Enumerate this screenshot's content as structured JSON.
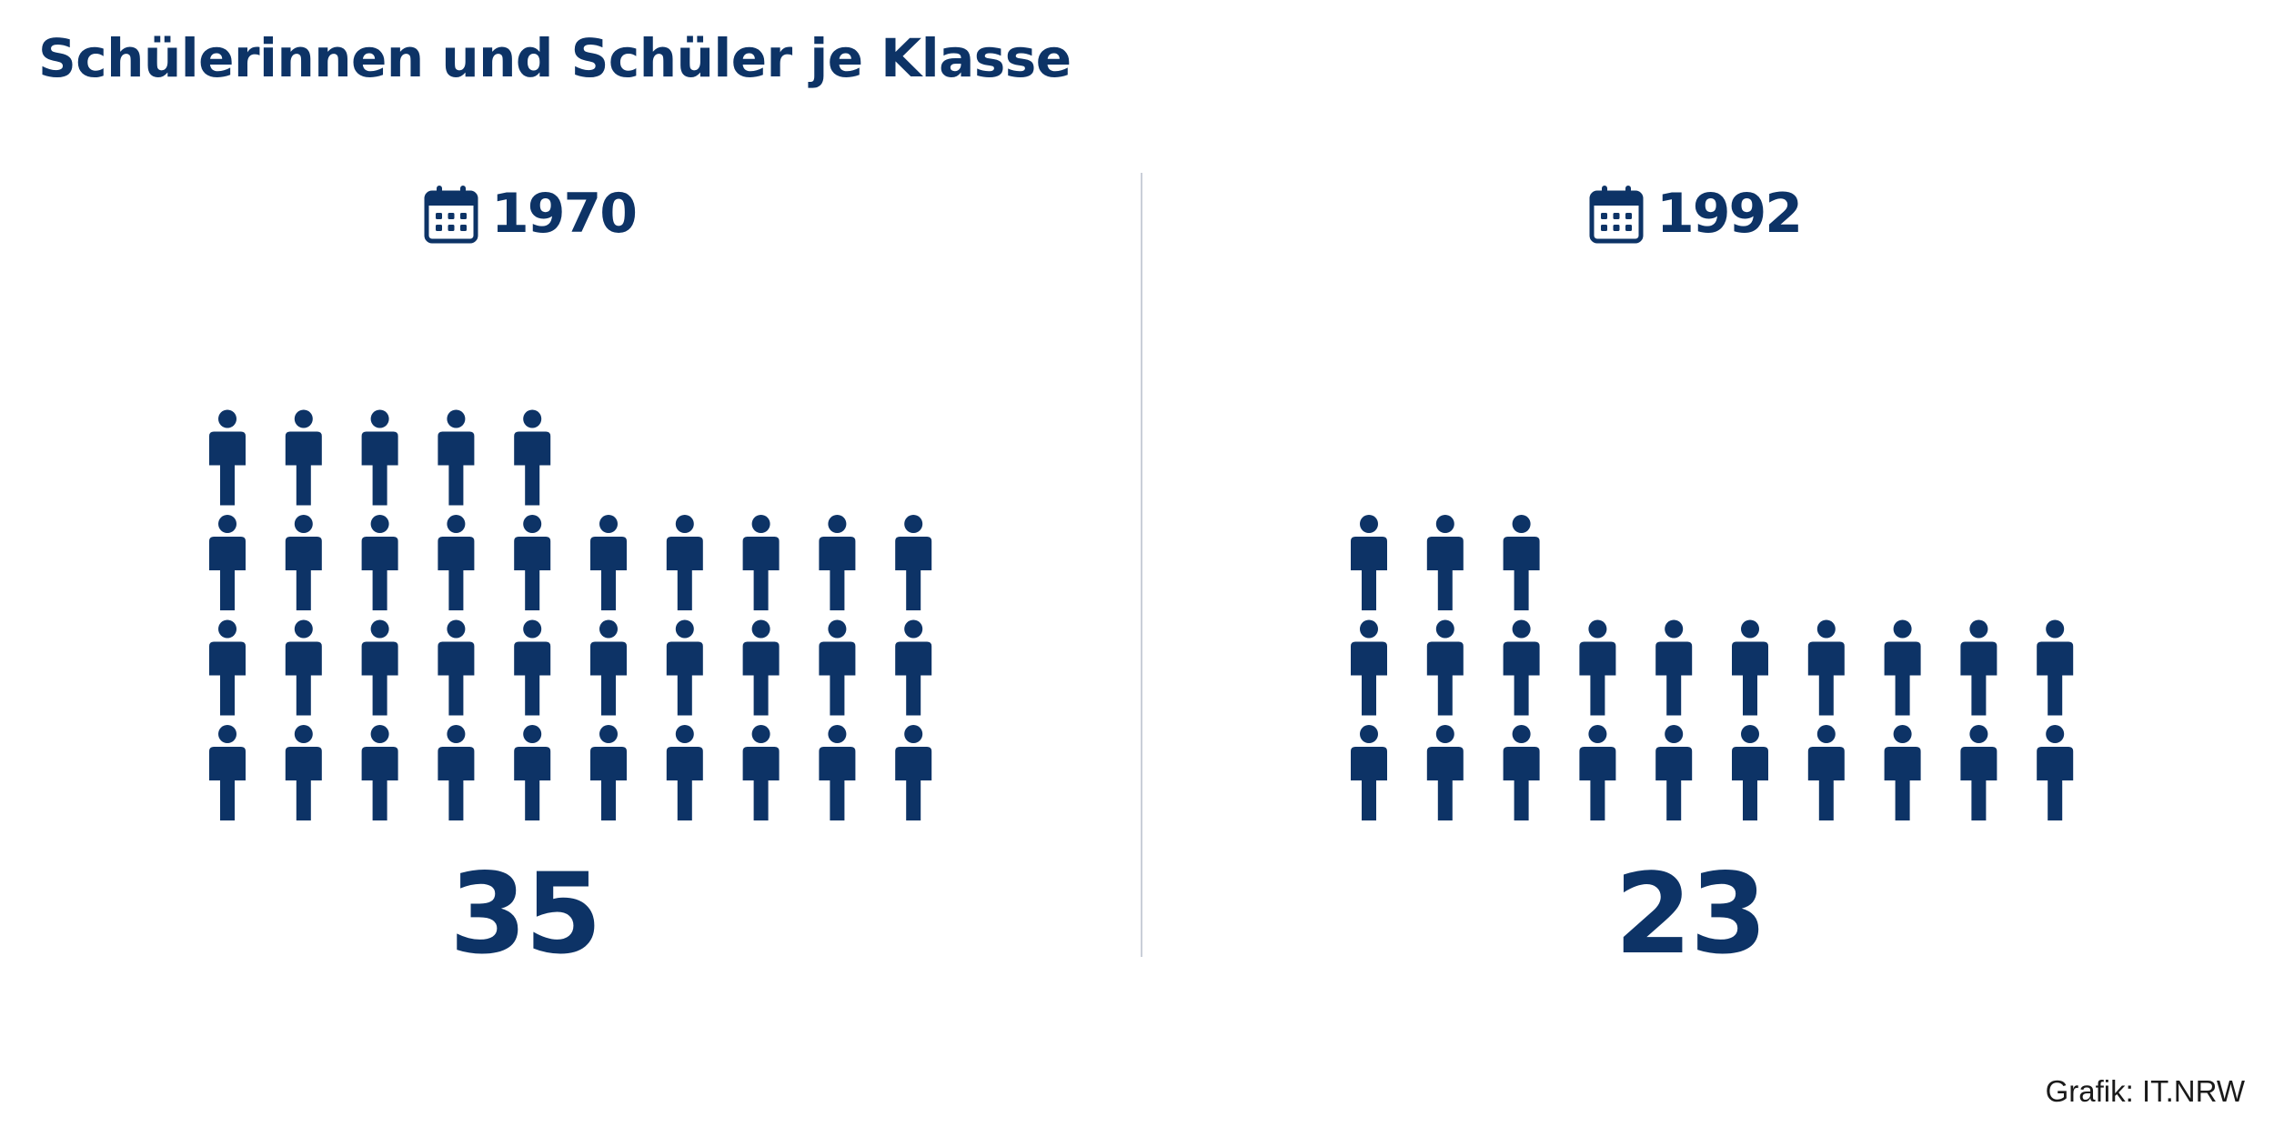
{
  "title": "Schülerinnen und Schüler je Klasse",
  "credit": "Grafik: IT.NRW",
  "colors": {
    "primary": "#0d3366",
    "divider": "#c9ced8",
    "background": "#ffffff"
  },
  "icons": {
    "year": "calendar-icon",
    "unit": "person-icon"
  },
  "chart_data": {
    "type": "pictogram",
    "title": "Schülerinnen und Schüler je Klasse",
    "unit_meaning": "students per class",
    "categories": [
      "1970",
      "1992"
    ],
    "values": [
      35,
      23
    ],
    "panels": [
      {
        "year": "1970",
        "value": 35,
        "value_label": "35"
      },
      {
        "year": "1992",
        "value": 23,
        "value_label": "23"
      }
    ]
  }
}
